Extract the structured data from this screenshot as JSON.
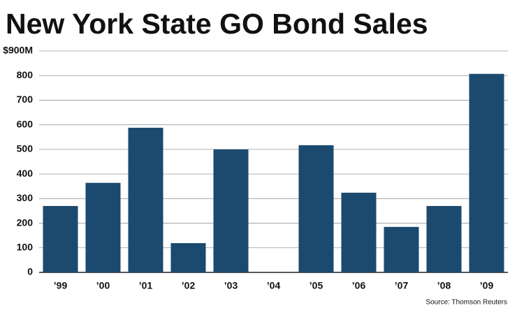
{
  "chart_data": {
    "type": "bar",
    "title": "New York State GO Bond Sales",
    "categories": [
      "’99",
      "’00",
      "’01",
      "’02",
      "’03",
      "’04",
      "’05",
      "’06",
      "’07",
      "’08",
      "’09"
    ],
    "values": [
      270,
      364,
      588,
      119,
      500,
      0,
      517,
      324,
      185,
      270,
      807
    ],
    "color": "#1c4a6e",
    "ylim": [
      0,
      900
    ],
    "yticks": [
      0,
      100,
      200,
      300,
      400,
      500,
      600,
      700,
      800,
      {
        "value": 900,
        "label": "$900M"
      }
    ],
    "grid": true,
    "source": "Source: Thomson Reuters"
  }
}
